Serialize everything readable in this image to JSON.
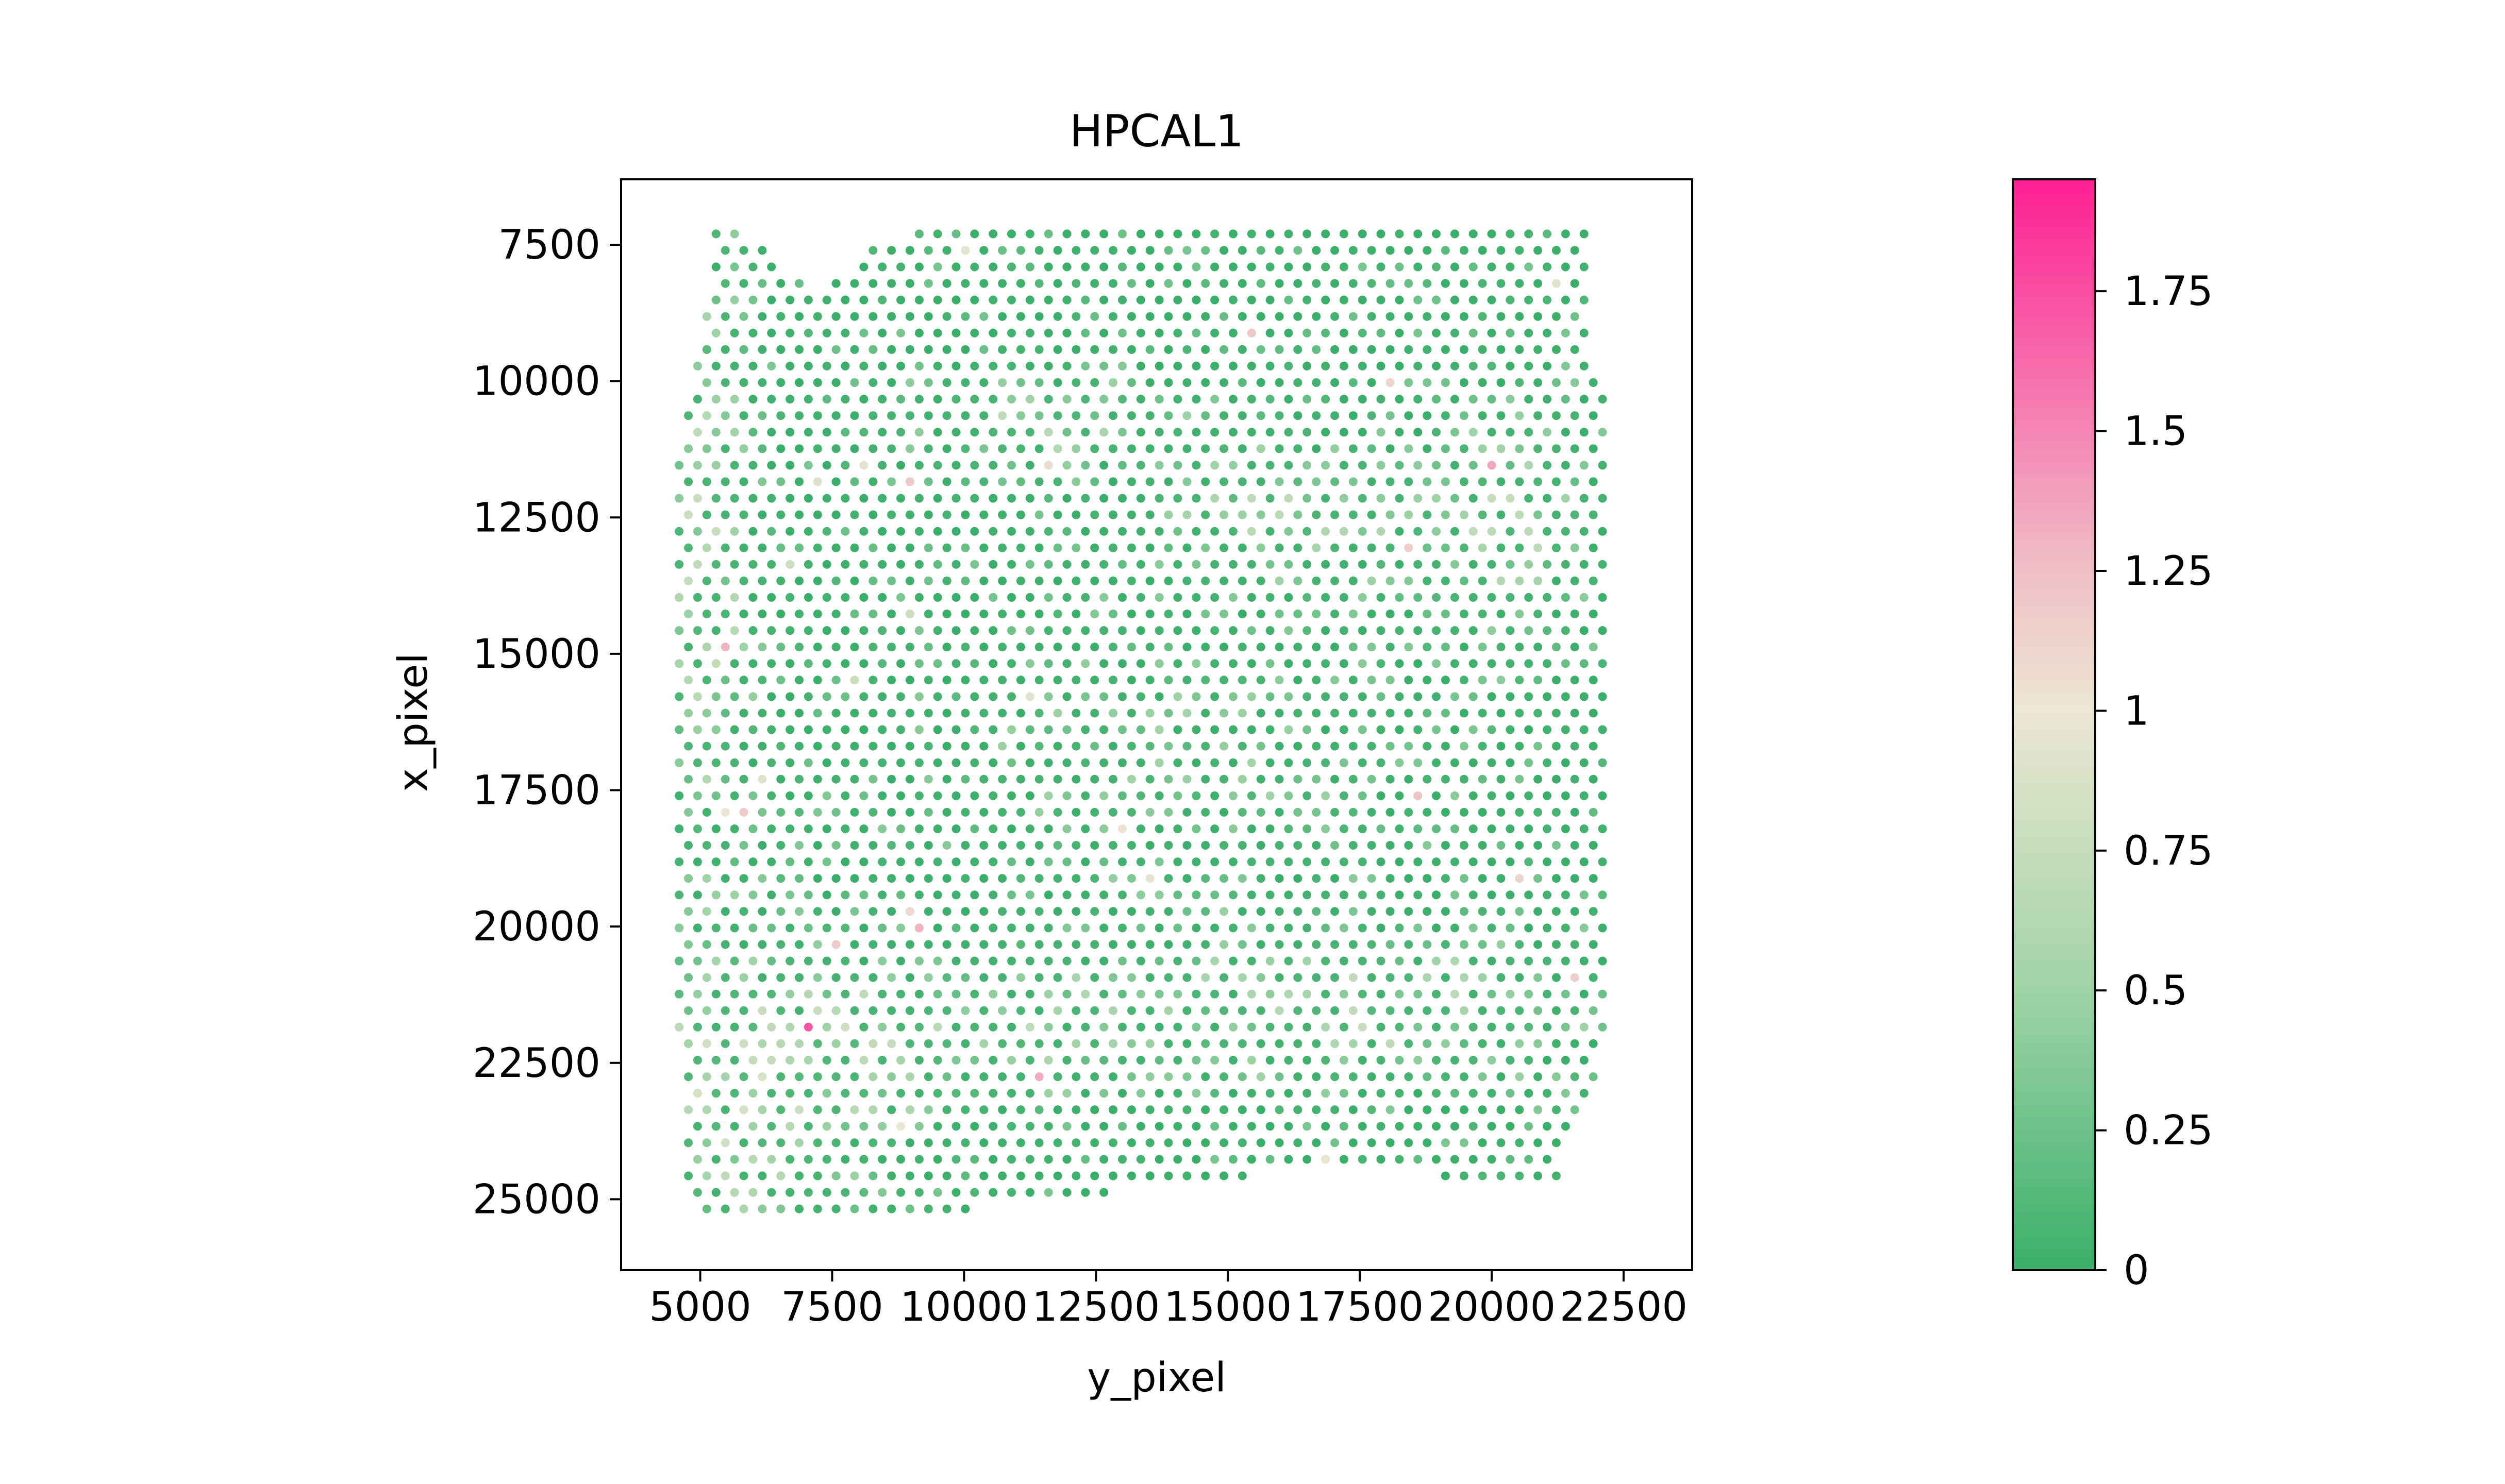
{
  "chart_data": {
    "type": "scatter",
    "title": "HPCAL1",
    "xlabel": "y_pixel",
    "ylabel": "x_pixel",
    "xlim": [
      3500,
      23800
    ],
    "ylim": [
      26300,
      6300
    ],
    "y_inverted": true,
    "grid": false,
    "x_ticks": [
      {
        "value": 5000,
        "label": "5000"
      },
      {
        "value": 7500,
        "label": "7500"
      },
      {
        "value": 10000,
        "label": "10000"
      },
      {
        "value": 12500,
        "label": "12500"
      },
      {
        "value": 15000,
        "label": "15000"
      },
      {
        "value": 17500,
        "label": "17500"
      },
      {
        "value": 20000,
        "label": "20000"
      },
      {
        "value": 22500,
        "label": "22500"
      }
    ],
    "y_ticks": [
      {
        "value": 7500,
        "label": "7500"
      },
      {
        "value": 10000,
        "label": "10000"
      },
      {
        "value": 12500,
        "label": "12500"
      },
      {
        "value": 15000,
        "label": "15000"
      },
      {
        "value": 17500,
        "label": "17500"
      },
      {
        "value": 20000,
        "label": "20000"
      },
      {
        "value": 22500,
        "label": "22500"
      },
      {
        "value": 25000,
        "label": "25000"
      }
    ],
    "point_grid": {
      "x_start": 4600,
      "x_end": 22150,
      "x_step": 350,
      "y_start": 7300,
      "y_end": 25300,
      "y_step": 303
    },
    "tissue_extent": {
      "top_edge": [
        {
          "x": 4500,
          "y": 11500
        },
        {
          "x": 4800,
          "y": 10200
        },
        {
          "x": 5100,
          "y": 9000
        },
        {
          "x": 5200,
          "y": 7300
        },
        {
          "x": 5800,
          "y": 7300
        },
        {
          "x": 6300,
          "y": 7700
        },
        {
          "x": 7200,
          "y": 8300
        },
        {
          "x": 7700,
          "y": 8000
        },
        {
          "x": 8500,
          "y": 7350
        },
        {
          "x": 9000,
          "y": 7300
        },
        {
          "x": 21800,
          "y": 7300
        },
        {
          "x": 21900,
          "y": 10000
        },
        {
          "x": 22300,
          "y": 10100
        }
      ],
      "bottom_edge": [
        {
          "x": 4500,
          "y": 19600
        },
        {
          "x": 4700,
          "y": 25100
        },
        {
          "x": 5500,
          "y": 25300
        },
        {
          "x": 8000,
          "y": 25400
        },
        {
          "x": 10000,
          "y": 25200
        },
        {
          "x": 12500,
          "y": 24900
        },
        {
          "x": 15000,
          "y": 24600
        },
        {
          "x": 17500,
          "y": 24400
        },
        {
          "x": 20000,
          "y": 24700
        },
        {
          "x": 21200,
          "y": 24700
        },
        {
          "x": 21900,
          "y": 23000
        },
        {
          "x": 22300,
          "y": 21300
        }
      ]
    },
    "value_fields": [
      {
        "x": 5000,
        "y": 13500,
        "amp": 0.55,
        "sx": 1000,
        "sy": 5500
      },
      {
        "x": 6000,
        "y": 23000,
        "amp": 0.6,
        "sx": 2500,
        "sy": 2500
      },
      {
        "x": 11500,
        "y": 10800,
        "amp": 0.45,
        "sx": 3000,
        "sy": 1000
      },
      {
        "x": 16500,
        "y": 12500,
        "amp": 0.45,
        "sx": 3000,
        "sy": 1200
      },
      {
        "x": 20500,
        "y": 12500,
        "amp": 0.4,
        "sx": 1500,
        "sy": 2500
      },
      {
        "x": 17500,
        "y": 21500,
        "amp": 0.5,
        "sx": 4500,
        "sy": 1500
      },
      {
        "x": 10000,
        "y": 22000,
        "amp": 0.4,
        "sx": 3000,
        "sy": 1500
      },
      {
        "x": 14000,
        "y": 17000,
        "amp": 0.25,
        "sx": 5000,
        "sy": 2500
      }
    ],
    "value_range": [
      0,
      1.95
    ],
    "point_color": "#3aaf6a",
    "colorbar": {
      "vmin": 0,
      "vmax": 1.95,
      "ticks": [
        {
          "value": 0,
          "label": "0"
        },
        {
          "value": 0.25,
          "label": "0.25"
        },
        {
          "value": 0.5,
          "label": "0.5"
        },
        {
          "value": 0.75,
          "label": "0.75"
        },
        {
          "value": 1,
          "label": "1"
        },
        {
          "value": 1.25,
          "label": "1.25"
        },
        {
          "value": 1.5,
          "label": "1.5"
        },
        {
          "value": 1.75,
          "label": "1.75"
        }
      ],
      "stops": [
        {
          "value": 0,
          "color": "#3aaf6a"
        },
        {
          "value": 0.5,
          "color": "#9fd3a6"
        },
        {
          "value": 1,
          "color": "#ece6d2"
        },
        {
          "value": 1.25,
          "color": "#efbfc6"
        },
        {
          "value": 1.95,
          "color": "#fc1f93"
        }
      ]
    }
  }
}
